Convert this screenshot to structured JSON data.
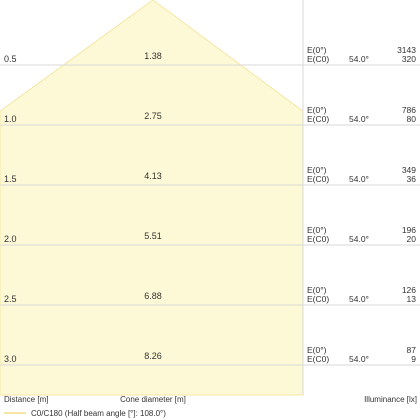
{
  "chart_data": {
    "type": "table",
    "axis_labels": {
      "distance": "Distance [m]",
      "cone": "Cone diameter [m]",
      "illuminance": "Illuminance [lx]"
    },
    "legend": "C0/C180 (Half beam angle [°]: 108.0°)",
    "half_beam_angle_deg": 108.0,
    "rows": [
      {
        "distance": "0.5",
        "cone": "1.38",
        "e0_label": "E(0°)",
        "ec0_label": "E(C0)",
        "angle": "54.0°",
        "e0": "3143",
        "ec0": "320"
      },
      {
        "distance": "1.0",
        "cone": "2.75",
        "e0_label": "E(0°)",
        "ec0_label": "E(C0)",
        "angle": "54.0°",
        "e0": "786",
        "ec0": "80"
      },
      {
        "distance": "1.5",
        "cone": "4.13",
        "e0_label": "E(0°)",
        "ec0_label": "E(C0)",
        "angle": "54.0°",
        "e0": "349",
        "ec0": "36"
      },
      {
        "distance": "2.0",
        "cone": "5.51",
        "e0_label": "E(0°)",
        "ec0_label": "E(C0)",
        "angle": "54.0°",
        "e0": "196",
        "ec0": "20"
      },
      {
        "distance": "2.5",
        "cone": "6.88",
        "e0_label": "E(0°)",
        "ec0_label": "E(C0)",
        "angle": "54.0°",
        "e0": "126",
        "ec0": "13"
      },
      {
        "distance": "3.0",
        "cone": "8.26",
        "e0_label": "E(0°)",
        "ec0_label": "E(C0)",
        "angle": "54.0°",
        "e0": "87",
        "ec0": "9"
      }
    ],
    "colors": {
      "cone_fill": "#fdf9d6",
      "cone_stroke": "#f5e6a3",
      "grid": "#d9d9d9",
      "text": "#333333"
    }
  }
}
